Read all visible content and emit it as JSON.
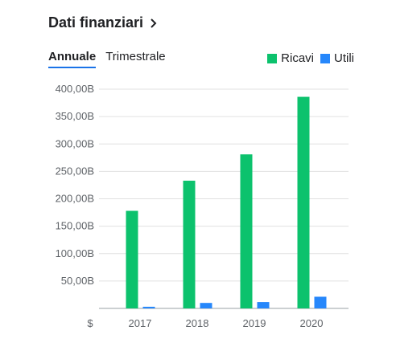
{
  "header": {
    "title": "Dati finanziari",
    "chevron_icon": "chevron-right-icon"
  },
  "tabs": [
    {
      "label": "Annuale",
      "active": true
    },
    {
      "label": "Trimestrale",
      "active": false
    }
  ],
  "legend": [
    {
      "label": "Ricavi",
      "color": "#0cc26d"
    },
    {
      "label": "Utili",
      "color": "#2687fb"
    }
  ],
  "chart_data": {
    "type": "bar",
    "categories": [
      "2017",
      "2018",
      "2019",
      "2020"
    ],
    "series": [
      {
        "name": "Ricavi",
        "color": "#0cc26d",
        "values": [
          178,
          233,
          281,
          386
        ]
      },
      {
        "name": "Utili",
        "color": "#2687fb",
        "values": [
          3,
          10,
          11.6,
          21.3
        ]
      }
    ],
    "yticks": [
      "",
      "50,00B",
      "100,00B",
      "150,00B",
      "200,00B",
      "250,00B",
      "300,00B",
      "350,00B",
      "400,00B"
    ],
    "ylim": [
      0,
      400
    ],
    "ytick_step": 50,
    "y_unit_label": "$",
    "unit": "B",
    "grid": true
  }
}
